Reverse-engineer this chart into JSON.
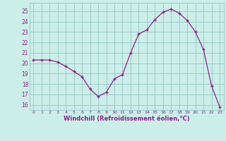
{
  "x": [
    0,
    1,
    2,
    3,
    4,
    5,
    6,
    7,
    8,
    9,
    10,
    11,
    12,
    13,
    14,
    15,
    16,
    17,
    18,
    19,
    20,
    21,
    22,
    23
  ],
  "y": [
    20.3,
    20.3,
    20.3,
    20.1,
    19.7,
    19.2,
    18.7,
    17.5,
    16.8,
    17.2,
    18.5,
    18.9,
    21.0,
    22.8,
    23.2,
    24.2,
    24.9,
    25.2,
    24.8,
    24.1,
    23.0,
    21.3,
    17.8,
    15.8
  ],
  "line_color": "#882288",
  "marker": "+",
  "marker_size": 3.5,
  "bg_color": "#cceee8",
  "grid_color": "#99cccc",
  "xlabel": "Windchill (Refroidissement éolien,°C)",
  "xlabel_color": "#882288",
  "tick_color": "#882288",
  "ylabel_ticks": [
    16,
    17,
    18,
    19,
    20,
    21,
    22,
    23,
    24,
    25
  ],
  "ylim": [
    15.5,
    25.8
  ],
  "xlim": [
    -0.5,
    23.5
  ]
}
